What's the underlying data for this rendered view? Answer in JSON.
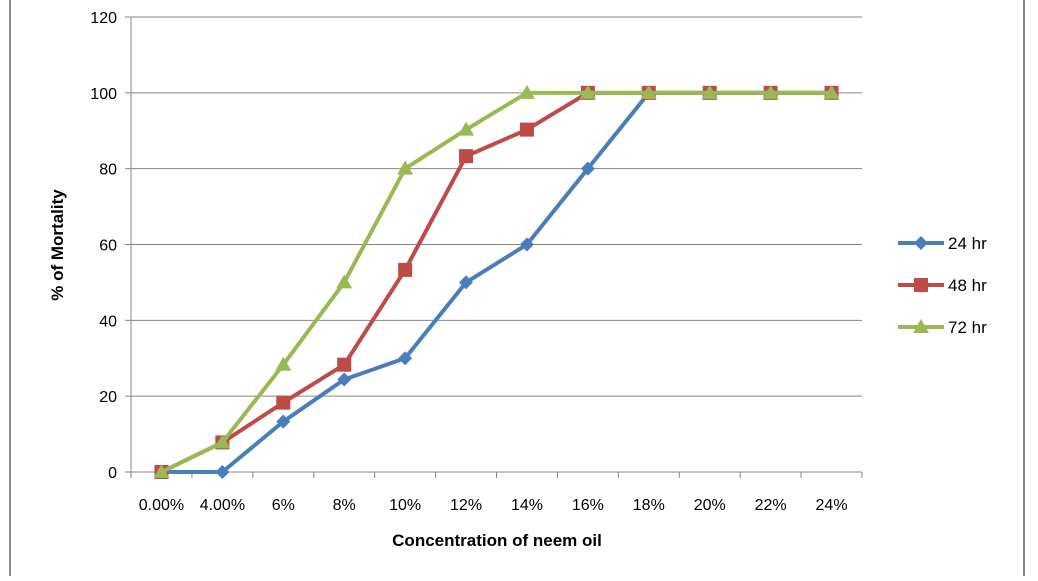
{
  "chart_data": {
    "type": "line",
    "title": "",
    "xlabel": "Concentration of neem oil",
    "ylabel": "% of Mortality",
    "categories": [
      "0.00%",
      "4.00%",
      "6%",
      "8%",
      "10%",
      "12%",
      "14%",
      "16%",
      "18%",
      "20%",
      "22%",
      "24%"
    ],
    "ylim": [
      0,
      120
    ],
    "yticks": [
      0,
      20,
      40,
      60,
      80,
      100,
      120
    ],
    "grid": true,
    "legend_position": "right",
    "series": [
      {
        "name": "24 hr",
        "color": "#4a7ebb",
        "marker": "diamond",
        "values": [
          0,
          0,
          13.3,
          24.4,
          30,
          50,
          60,
          80,
          100,
          100,
          100,
          100
        ]
      },
      {
        "name": "48 hr",
        "color": "#be4b48",
        "marker": "square",
        "values": [
          0,
          7.8,
          18.3,
          28.3,
          53.3,
          83.3,
          90.3,
          100,
          100,
          100,
          100,
          100
        ]
      },
      {
        "name": "72 hr",
        "color": "#98b954",
        "marker": "triangle",
        "values": [
          0,
          7.8,
          28.3,
          50,
          80,
          90.3,
          100,
          100,
          100,
          100,
          100,
          100
        ]
      }
    ]
  }
}
